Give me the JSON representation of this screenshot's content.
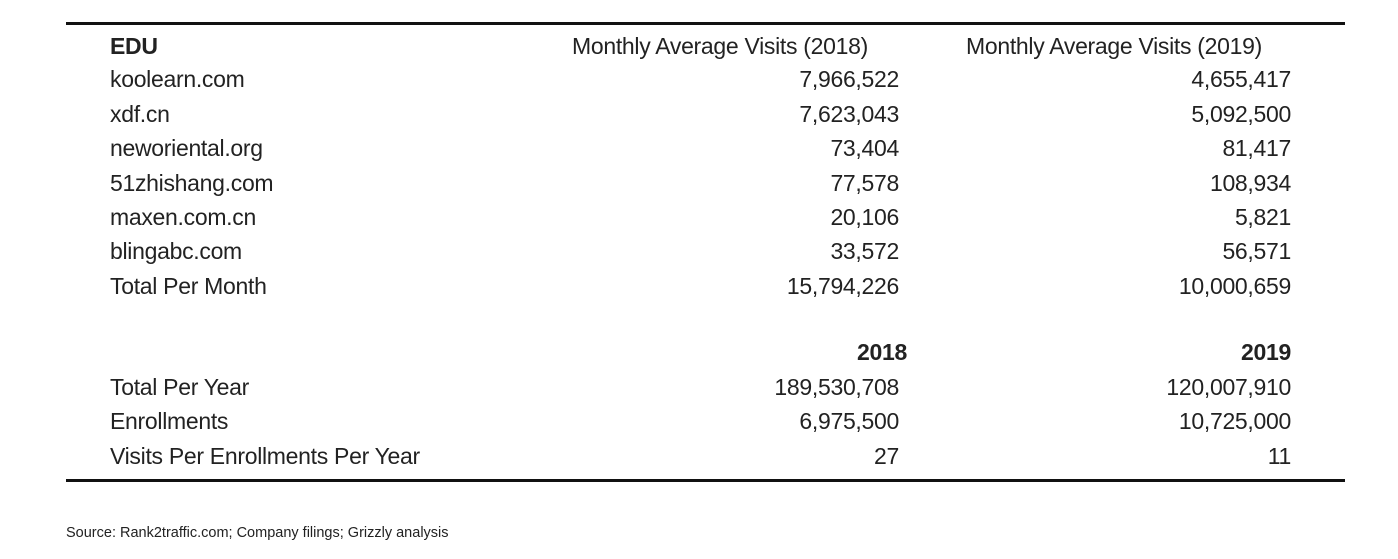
{
  "table": {
    "headers": [
      "EDU",
      "Monthly Average Visits (2018)",
      "Monthly Average Visits (2019)"
    ],
    "rows": [
      [
        "koolearn.com",
        "7,966,522",
        "4,655,417"
      ],
      [
        "xdf.cn",
        "7,623,043",
        "5,092,500"
      ],
      [
        "neworiental.org",
        "73,404",
        "81,417"
      ],
      [
        "51zhishang.com",
        "77,578",
        "108,934"
      ],
      [
        "maxen.com.cn",
        "20,106",
        "5,821"
      ],
      [
        "blingabc.com",
        "33,572",
        "56,571"
      ],
      [
        "Total Per Month",
        "15,794,226",
        "10,000,659"
      ]
    ],
    "year_headers": [
      "2018",
      "2019"
    ],
    "summary_rows": [
      [
        "Total Per Year",
        "189,530,708",
        "120,007,910"
      ],
      [
        "Enrollments",
        "6,975,500",
        "10,725,000"
      ],
      [
        "Visits Per Enrollments Per Year",
        "27",
        "11"
      ]
    ]
  },
  "source": "Source: Rank2traffic.com; Company filings; Grizzly analysis"
}
